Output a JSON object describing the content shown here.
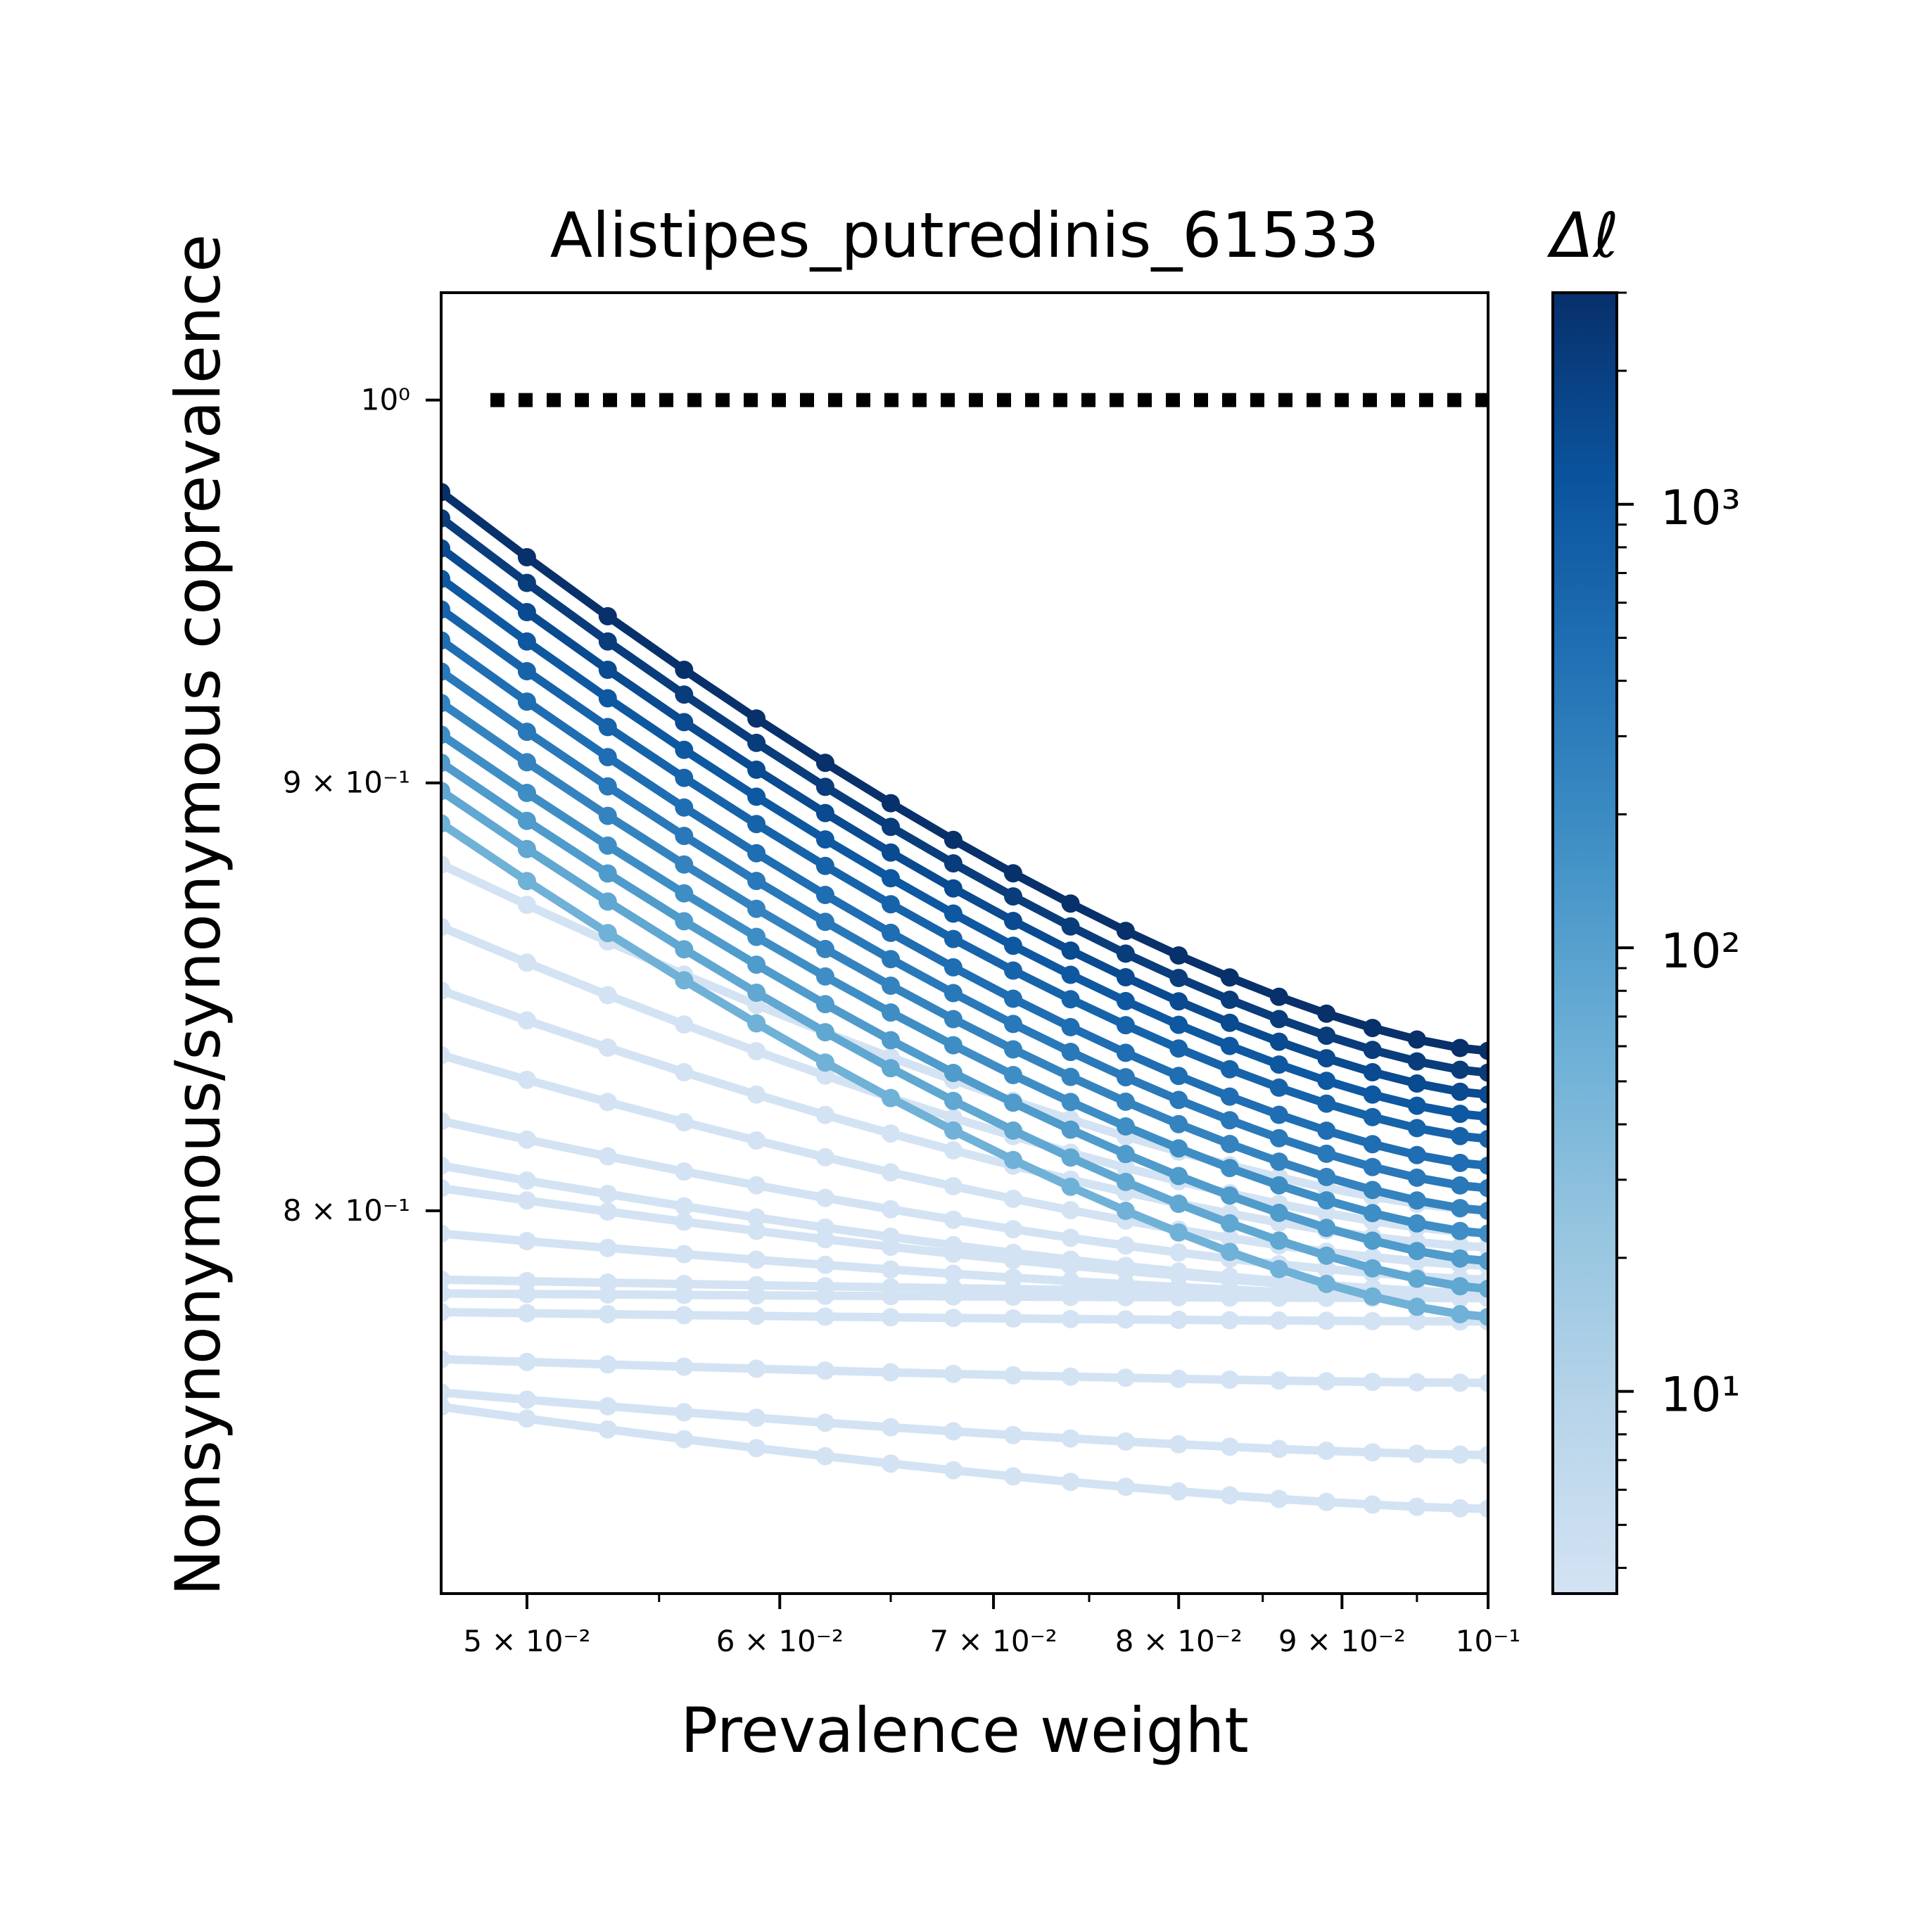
{
  "chart_data": {
    "type": "line",
    "title": "Alistipes_putredinis_61533",
    "xlabel": "Prevalence weight",
    "ylabel": "Nonsynonymous/synonymous coprevalence",
    "xscale": "log",
    "yscale": "log",
    "xlim": [
      0.047,
      0.1
    ],
    "ylim": [
      0.72,
      1.03
    ],
    "x_ticks": [
      {
        "value": 0.05,
        "label": "5 × 10⁻²"
      },
      {
        "value": 0.06,
        "label": "6 × 10⁻²"
      },
      {
        "value": 0.07,
        "label": "7 × 10⁻²"
      },
      {
        "value": 0.08,
        "label": "8 × 10⁻²"
      },
      {
        "value": 0.09,
        "label": "9 × 10⁻²"
      },
      {
        "value": 0.1,
        "label": "10⁻¹"
      }
    ],
    "y_ticks": [
      {
        "value": 1.0,
        "label": "10⁰"
      },
      {
        "value": 0.9,
        "label": "9 × 10⁻¹"
      },
      {
        "value": 0.8,
        "label": "8 × 10⁻¹"
      }
    ],
    "reference_line": {
      "y": 1.0,
      "style": "dotted",
      "color": "#000000"
    },
    "grid": false,
    "colorbar": {
      "label": "Δℓ",
      "scale": "log",
      "range": [
        3.5,
        3000
      ],
      "colormap": "Blues",
      "ticks": [
        {
          "value": 10,
          "label": "10¹"
        },
        {
          "value": 100,
          "label": "10²"
        },
        {
          "value": 1000,
          "label": "10³"
        }
      ]
    },
    "x": [
      0.047,
      0.05,
      0.053,
      0.056,
      0.059,
      0.062,
      0.065,
      0.068,
      0.071,
      0.074,
      0.077,
      0.08,
      0.083,
      0.086,
      0.089,
      0.092,
      0.095,
      0.098,
      0.1
    ],
    "series": [
      {
        "dl": 3000,
        "start": 0.975,
        "end": 0.836
      },
      {
        "dl": 2200,
        "start": 0.968,
        "end": 0.831
      },
      {
        "dl": 1500,
        "start": 0.96,
        "end": 0.826
      },
      {
        "dl": 1000,
        "start": 0.952,
        "end": 0.821
      },
      {
        "dl": 700,
        "start": 0.944,
        "end": 0.816
      },
      {
        "dl": 500,
        "start": 0.936,
        "end": 0.81
      },
      {
        "dl": 350,
        "start": 0.928,
        "end": 0.805
      },
      {
        "dl": 250,
        "start": 0.92,
        "end": 0.8
      },
      {
        "dl": 180,
        "start": 0.912,
        "end": 0.795
      },
      {
        "dl": 120,
        "start": 0.905,
        "end": 0.789
      },
      {
        "dl": 80,
        "start": 0.898,
        "end": 0.783
      },
      {
        "dl": 55,
        "start": 0.89,
        "end": 0.777
      },
      {
        "dl": 3.5,
        "start": 0.88,
        "end": 0.8
      },
      {
        "dl": 3.5,
        "start": 0.865,
        "end": 0.795
      },
      {
        "dl": 3.5,
        "start": 0.85,
        "end": 0.792
      },
      {
        "dl": 3.5,
        "start": 0.835,
        "end": 0.788
      },
      {
        "dl": 3.5,
        "start": 0.82,
        "end": 0.785
      },
      {
        "dl": 3.5,
        "start": 0.81,
        "end": 0.782
      },
      {
        "dl": 3.5,
        "start": 0.805,
        "end": 0.782
      },
      {
        "dl": 3.5,
        "start": 0.795,
        "end": 0.781
      },
      {
        "dl": 3.5,
        "start": 0.785,
        "end": 0.782
      },
      {
        "dl": 3.5,
        "start": 0.782,
        "end": 0.781
      },
      {
        "dl": 3.5,
        "start": 0.778,
        "end": 0.776
      },
      {
        "dl": 3.5,
        "start": 0.768,
        "end": 0.763
      },
      {
        "dl": 3.5,
        "start": 0.761,
        "end": 0.748
      },
      {
        "dl": 3.5,
        "start": 0.758,
        "end": 0.737
      }
    ]
  },
  "colors": {
    "colormap_stops": [
      "#d3e3f3",
      "#b7d4ea",
      "#94c4df",
      "#6aaed6",
      "#4191c6",
      "#2271b5",
      "#0a549e",
      "#08306b"
    ],
    "reference_line": "#000000",
    "axes": "#000000"
  }
}
